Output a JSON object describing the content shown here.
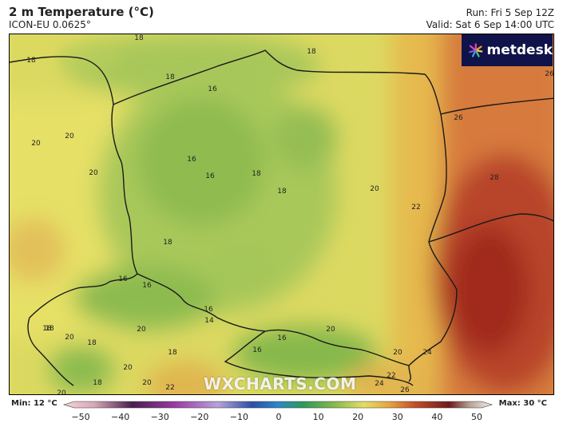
{
  "header": {
    "title": "2 m Temperature (°C)",
    "subtitle": "ICON-EU 0.0625°",
    "run": "Run: Fri 5 Sep 12Z",
    "valid": "Valid: Sat 6 Sep 14:00 UTC"
  },
  "logo": {
    "text": "metdesk"
  },
  "watermark": {
    "text": "WXCHARTS.COM"
  },
  "legend": {
    "min_label": "Min: 12 °C",
    "max_label": "Max: 30 °C",
    "ticks": [
      "−50",
      "−40",
      "−30",
      "−20",
      "−10",
      "0",
      "10",
      "20",
      "30",
      "40",
      "50"
    ],
    "range": [
      -50,
      50
    ]
  },
  "contour_labels": [
    "18",
    "18",
    "18",
    "18",
    "16",
    "16",
    "16",
    "18",
    "18",
    "20",
    "20",
    "20",
    "20",
    "18",
    "16",
    "16",
    "16",
    "14",
    "18",
    "20",
    "18",
    "20",
    "18",
    "16",
    "20",
    "16",
    "20",
    "20",
    "18",
    "20",
    "22",
    "24",
    "20",
    "22",
    "26",
    "24",
    "22",
    "26",
    "26",
    "28",
    "18"
  ],
  "colors": {
    "cool_green": "#7fb04a",
    "mid_green": "#9cc257",
    "yellow_green": "#c5d65d",
    "yellow": "#e4df63",
    "orange": "#e2a448",
    "red_orange": "#d0693a",
    "dark_red": "#a62a20",
    "border": "#222222"
  }
}
